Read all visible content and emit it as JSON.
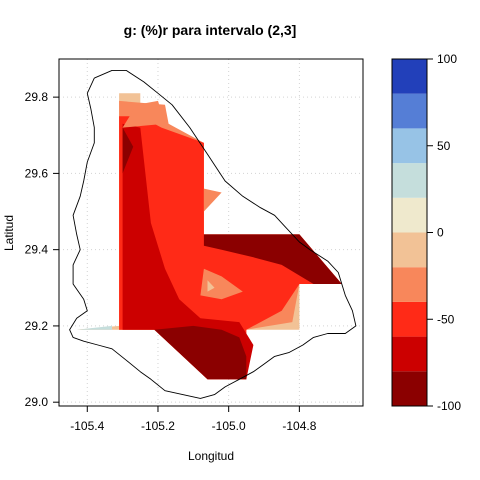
{
  "chart_data": {
    "type": "heatmap",
    "title": "g:   (%)r para intervalo (2,3]",
    "xlabel": "Longitud",
    "ylabel": "Latitud",
    "xlim": [
      -105.48,
      -104.62
    ],
    "ylim": [
      28.99,
      29.9
    ],
    "x_ticks": [
      -105.4,
      -105.2,
      -105.0,
      -104.8
    ],
    "x_tick_labels": [
      "-105.4",
      "-105.2",
      "-105.0",
      "-104.8"
    ],
    "y_ticks": [
      29.0,
      29.2,
      29.4,
      29.6,
      29.8
    ],
    "y_tick_labels": [
      "29.0",
      "29.2",
      "29.4",
      "29.6",
      "29.8"
    ],
    "grid": true,
    "colorbar": {
      "levels": [
        -100,
        -80,
        -60,
        -40,
        -20,
        0,
        20,
        40,
        60,
        80,
        100
      ],
      "tick_values": [
        -100,
        -50,
        0,
        50,
        100
      ],
      "tick_labels": [
        "-100",
        "-50",
        "0",
        "50",
        "100"
      ],
      "colors": [
        "#8B0000",
        "#CC0000",
        "#FF2A17",
        "#F8875B",
        "#F2C296",
        "#EFE9CD",
        "#C5DEDC",
        "#97C3E6",
        "#557ED6",
        "#2240BA"
      ]
    },
    "filled_region": [
      {
        "x": -105.31,
        "y": 29.81
      },
      {
        "x": -105.25,
        "y": 29.81
      },
      {
        "x": -105.25,
        "y": 29.77
      },
      {
        "x": -105.18,
        "y": 29.72
      },
      {
        "x": -105.07,
        "y": 29.68
      },
      {
        "x": -105.07,
        "y": 29.44
      },
      {
        "x": -104.8,
        "y": 29.44
      },
      {
        "x": -104.68,
        "y": 29.31
      },
      {
        "x": -104.8,
        "y": 29.31
      },
      {
        "x": -104.8,
        "y": 29.19
      },
      {
        "x": -104.95,
        "y": 29.19
      },
      {
        "x": -104.95,
        "y": 29.06
      },
      {
        "x": -105.06,
        "y": 29.06
      },
      {
        "x": -105.21,
        "y": 29.19
      },
      {
        "x": -105.43,
        "y": 29.19
      },
      {
        "x": -105.31,
        "y": 29.2
      }
    ],
    "contour_bands": [
      {
        "level": -20,
        "points": [
          [
            -105.31,
            29.81
          ],
          [
            -105.25,
            29.81
          ],
          [
            -105.25,
            29.77
          ],
          [
            -105.18,
            29.72
          ],
          [
            -105.07,
            29.68
          ],
          [
            -105.07,
            29.44
          ],
          [
            -104.8,
            29.44
          ],
          [
            -104.68,
            29.31
          ],
          [
            -104.8,
            29.31
          ],
          [
            -104.8,
            29.19
          ],
          [
            -104.95,
            29.19
          ],
          [
            -104.95,
            29.06
          ],
          [
            -105.06,
            29.06
          ],
          [
            -105.21,
            29.19
          ],
          [
            -105.43,
            29.19
          ],
          [
            -105.31,
            29.2
          ]
        ]
      },
      {
        "level": -40,
        "points": [
          [
            -105.31,
            29.79
          ],
          [
            -105.18,
            29.78
          ],
          [
            -105.17,
            29.73
          ],
          [
            -105.07,
            29.68
          ],
          [
            -105.07,
            29.44
          ],
          [
            -104.8,
            29.44
          ],
          [
            -104.68,
            29.31
          ],
          [
            -104.8,
            29.31
          ],
          [
            -104.82,
            29.21
          ],
          [
            -104.95,
            29.19
          ],
          [
            -104.95,
            29.06
          ],
          [
            -105.06,
            29.06
          ],
          [
            -105.21,
            29.19
          ],
          [
            -105.31,
            29.19
          ]
        ]
      },
      {
        "level": -60,
        "points": [
          [
            -105.31,
            29.75
          ],
          [
            -105.25,
            29.75
          ],
          [
            -105.19,
            29.72
          ],
          [
            -105.07,
            29.68
          ],
          [
            -105.07,
            29.44
          ],
          [
            -104.8,
            29.44
          ],
          [
            -104.68,
            29.31
          ],
          [
            -104.8,
            29.31
          ],
          [
            -104.85,
            29.24
          ],
          [
            -104.95,
            29.19
          ],
          [
            -104.95,
            29.06
          ],
          [
            -105.06,
            29.06
          ],
          [
            -105.21,
            29.19
          ],
          [
            -105.31,
            29.19
          ]
        ]
      },
      {
        "level": -80,
        "points": [
          [
            -105.3,
            29.73
          ],
          [
            -105.25,
            29.72
          ],
          [
            -105.22,
            29.47
          ],
          [
            -105.18,
            29.35
          ],
          [
            -105.14,
            29.27
          ],
          [
            -105.08,
            29.22
          ],
          [
            -104.97,
            29.21
          ],
          [
            -104.93,
            29.15
          ],
          [
            -104.95,
            29.06
          ],
          [
            -105.06,
            29.06
          ],
          [
            -105.21,
            29.19
          ],
          [
            -105.3,
            29.19
          ]
        ]
      },
      {
        "level": -100,
        "points": [
          [
            -105.07,
            29.44
          ],
          [
            -104.8,
            29.44
          ],
          [
            -104.68,
            29.31
          ],
          [
            -104.76,
            29.31
          ],
          [
            -104.85,
            29.36
          ],
          [
            -104.93,
            29.38
          ],
          [
            -105.02,
            29.4
          ],
          [
            -105.07,
            29.41
          ]
        ]
      },
      {
        "level": -100,
        "points": [
          [
            -105.21,
            29.19
          ],
          [
            -105.1,
            29.2
          ],
          [
            -105.02,
            29.19
          ],
          [
            -104.97,
            29.17
          ],
          [
            -104.95,
            29.12
          ],
          [
            -104.95,
            29.06
          ],
          [
            -105.06,
            29.06
          ]
        ]
      },
      {
        "level": -100,
        "points": [
          [
            -105.3,
            29.72
          ],
          [
            -105.27,
            29.67
          ],
          [
            -105.3,
            29.6
          ]
        ]
      },
      {
        "level": -40,
        "points": [
          [
            -105.07,
            29.56
          ],
          [
            -105.02,
            29.55
          ],
          [
            -105.07,
            29.5
          ]
        ]
      },
      {
        "level": -40,
        "points": [
          [
            -105.07,
            29.35
          ],
          [
            -105.02,
            29.33
          ],
          [
            -104.96,
            29.29
          ],
          [
            -105.02,
            29.27
          ],
          [
            -105.08,
            29.28
          ]
        ]
      },
      {
        "level": -20,
        "points": [
          [
            -105.06,
            29.32
          ],
          [
            -105.04,
            29.3
          ],
          [
            -105.06,
            29.29
          ]
        ]
      },
      {
        "level": -40,
        "points": [
          [
            -105.3,
            29.72
          ],
          [
            -105.26,
            29.78
          ],
          [
            -105.2,
            29.79
          ],
          [
            -105.18,
            29.73
          ]
        ]
      }
    ],
    "boundary": [
      [
        -105.38,
        29.85
      ],
      [
        -105.33,
        29.87
      ],
      [
        -105.29,
        29.87
      ],
      [
        -105.24,
        29.84
      ],
      [
        -105.2,
        29.81
      ],
      [
        -105.16,
        29.78
      ],
      [
        -105.11,
        29.72
      ],
      [
        -105.06,
        29.65
      ],
      [
        -105.01,
        29.58
      ],
      [
        -104.96,
        29.54
      ],
      [
        -104.91,
        29.51
      ],
      [
        -104.87,
        29.49
      ],
      [
        -104.84,
        29.46
      ],
      [
        -104.8,
        29.42
      ],
      [
        -104.77,
        29.4
      ],
      [
        -104.72,
        29.37
      ],
      [
        -104.69,
        29.34
      ],
      [
        -104.68,
        29.31
      ],
      [
        -104.67,
        29.28
      ],
      [
        -104.65,
        29.24
      ],
      [
        -104.64,
        29.2
      ],
      [
        -104.67,
        29.18
      ],
      [
        -104.72,
        29.18
      ],
      [
        -104.76,
        29.17
      ],
      [
        -104.79,
        29.15
      ],
      [
        -104.83,
        29.13
      ],
      [
        -104.87,
        29.12
      ],
      [
        -104.9,
        29.1
      ],
      [
        -104.93,
        29.08
      ],
      [
        -104.97,
        29.06
      ],
      [
        -105.01,
        29.04
      ],
      [
        -105.04,
        29.02
      ],
      [
        -105.08,
        29.01
      ],
      [
        -105.13,
        29.02
      ],
      [
        -105.18,
        29.03
      ],
      [
        -105.22,
        29.06
      ],
      [
        -105.25,
        29.08
      ],
      [
        -105.29,
        29.11
      ],
      [
        -105.33,
        29.14
      ],
      [
        -105.37,
        29.15
      ],
      [
        -105.41,
        29.16
      ],
      [
        -105.44,
        29.17
      ],
      [
        -105.45,
        29.19
      ],
      [
        -105.43,
        29.22
      ],
      [
        -105.4,
        29.24
      ],
      [
        -105.41,
        29.27
      ],
      [
        -105.44,
        29.31
      ],
      [
        -105.44,
        29.36
      ],
      [
        -105.42,
        29.4
      ],
      [
        -105.43,
        29.44
      ],
      [
        -105.44,
        29.49
      ],
      [
        -105.42,
        29.54
      ],
      [
        -105.41,
        29.58
      ],
      [
        -105.4,
        29.63
      ],
      [
        -105.38,
        29.68
      ],
      [
        -105.38,
        29.72
      ],
      [
        -105.39,
        29.77
      ],
      [
        -105.4,
        29.81
      ],
      [
        -105.38,
        29.85
      ]
    ]
  }
}
